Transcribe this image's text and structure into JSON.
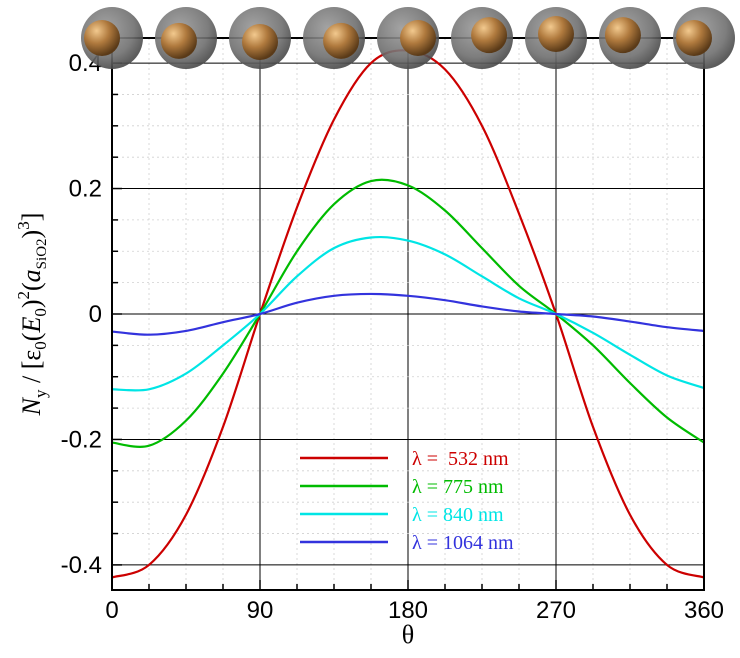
{
  "chart_data": {
    "type": "line",
    "xlabel": "θ",
    "ylabel_parts": {
      "sym": "N",
      "sub": "y",
      "mid1": " / [ε",
      "eps_sub": "0",
      "paren_open": "(",
      "field": "E",
      "field_sub": "0",
      "paren_close": ")",
      "sq": "2",
      "rad_open": "(",
      "radius": "a",
      "radius_sub": "SiO2",
      "rad_close": ")",
      "cube": "3",
      "end": "]"
    },
    "xlim": [
      0,
      360
    ],
    "ylim": [
      -0.44,
      0.44
    ],
    "xticks": [
      0,
      90,
      180,
      270,
      360
    ],
    "xtick_labels": [
      "0",
      "90",
      "180",
      "270",
      "360"
    ],
    "yticks": [
      -0.4,
      -0.2,
      0,
      0.2,
      0.4
    ],
    "ytick_labels": [
      "-0.4",
      "-0.2",
      "0",
      "0.2",
      "0.4"
    ],
    "grid": true,
    "legend_position": "bottom-center",
    "series": [
      {
        "name": "λ =  532 nm",
        "color": "#cc0000",
        "x": [
          0,
          22.5,
          45,
          67.5,
          90,
          112.5,
          135,
          157.5,
          180,
          202.5,
          225,
          247.5,
          270,
          292.5,
          315,
          337.5,
          360
        ],
        "y": [
          -0.42,
          -0.4,
          -0.32,
          -0.18,
          0.0,
          0.17,
          0.31,
          0.4,
          0.42,
          0.39,
          0.3,
          0.16,
          0.0,
          -0.18,
          -0.32,
          -0.4,
          -0.42
        ]
      },
      {
        "name": "λ = 775 nm",
        "color": "#00bb00",
        "x": [
          0,
          22.5,
          45,
          67.5,
          90,
          112.5,
          135,
          157.5,
          180,
          202.5,
          225,
          247.5,
          270,
          292.5,
          315,
          337.5,
          360
        ],
        "y": [
          -0.205,
          -0.21,
          -0.17,
          -0.095,
          0.0,
          0.1,
          0.175,
          0.212,
          0.205,
          0.165,
          0.105,
          0.045,
          0.0,
          -0.05,
          -0.11,
          -0.165,
          -0.205
        ]
      },
      {
        "name": "λ = 840 nm",
        "color": "#00e5e5",
        "x": [
          0,
          22.5,
          45,
          67.5,
          90,
          112.5,
          135,
          157.5,
          180,
          202.5,
          225,
          247.5,
          270,
          292.5,
          315,
          337.5,
          360
        ],
        "y": [
          -0.12,
          -0.12,
          -0.095,
          -0.05,
          0.0,
          0.06,
          0.105,
          0.122,
          0.117,
          0.095,
          0.06,
          0.025,
          0.0,
          -0.03,
          -0.065,
          -0.098,
          -0.118
        ]
      },
      {
        "name": "λ = 1064 nm",
        "color": "#3333dd",
        "x": [
          0,
          22.5,
          45,
          67.5,
          90,
          112.5,
          135,
          157.5,
          180,
          202.5,
          225,
          247.5,
          270,
          292.5,
          315,
          337.5,
          360
        ],
        "y": [
          -0.028,
          -0.033,
          -0.027,
          -0.013,
          0.0,
          0.018,
          0.029,
          0.032,
          0.029,
          0.022,
          0.012,
          0.004,
          0.0,
          -0.004,
          -0.012,
          -0.021,
          -0.027
        ]
      }
    ],
    "particle_icons": [
      "core-shell-particle",
      "core-shell-particle",
      "core-shell-particle",
      "core-shell-particle",
      "core-shell-particle",
      "core-shell-particle",
      "core-shell-particle",
      "core-shell-particle",
      "core-shell-particle"
    ],
    "particle_core_offset_deg": [
      0,
      45,
      90,
      135,
      180,
      225,
      270,
      315,
      360
    ],
    "colors": {
      "shell": "#8a8a8a",
      "core": "#b07a3e",
      "grid": "#d0d0d0"
    }
  }
}
